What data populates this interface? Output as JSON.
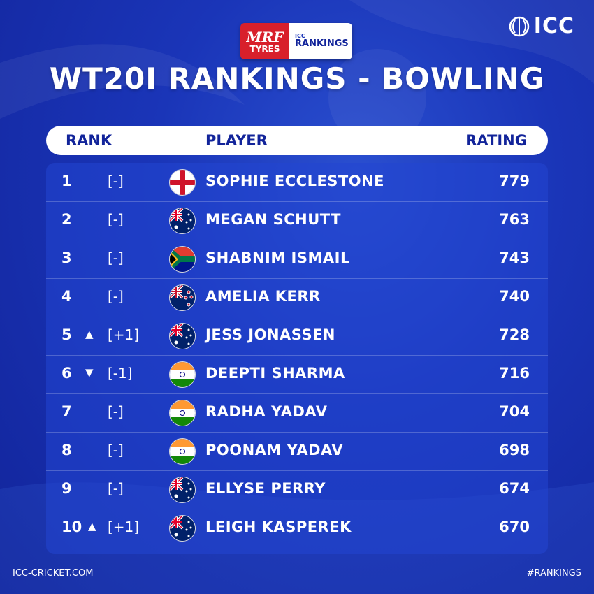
{
  "sponsor": {
    "brand_top": "MRF",
    "brand_bottom": "TYRES",
    "tag_top": "ICC",
    "tag_bottom": "RANKINGS"
  },
  "logo": {
    "text": "ICC"
  },
  "title": "WT20I RANKINGS - BOWLING",
  "header": {
    "rank": "RANK",
    "player": "PLAYER",
    "rating": "RATING"
  },
  "rows": [
    {
      "rank": "1",
      "arrow": "",
      "change": "[-]",
      "flag": "england",
      "name": "SOPHIE ECCLESTONE",
      "rating": "779"
    },
    {
      "rank": "2",
      "arrow": "",
      "change": "[-]",
      "flag": "australia",
      "name": "MEGAN SCHUTT",
      "rating": "763"
    },
    {
      "rank": "3",
      "arrow": "",
      "change": "[-]",
      "flag": "south-africa",
      "name": "SHABNIM ISMAIL",
      "rating": "743"
    },
    {
      "rank": "4",
      "arrow": "",
      "change": "[-]",
      "flag": "new-zealand",
      "name": "AMELIA KERR",
      "rating": "740"
    },
    {
      "rank": "5",
      "arrow": "▲",
      "change": "[+1]",
      "flag": "australia",
      "name": "JESS JONASSEN",
      "rating": "728"
    },
    {
      "rank": "6",
      "arrow": "▼",
      "change": "[-1]",
      "flag": "india",
      "name": "DEEPTI SHARMA",
      "rating": "716"
    },
    {
      "rank": "7",
      "arrow": "",
      "change": "[-]",
      "flag": "india",
      "name": "RADHA YADAV",
      "rating": "704"
    },
    {
      "rank": "8",
      "arrow": "",
      "change": "[-]",
      "flag": "india",
      "name": "POONAM YADAV",
      "rating": "698"
    },
    {
      "rank": "9",
      "arrow": "",
      "change": "[-]",
      "flag": "australia",
      "name": "ELLYSE PERRY",
      "rating": "674"
    },
    {
      "rank": "10",
      "arrow": "▲",
      "change": "[+1]",
      "flag": "australia",
      "name": "LEIGH KASPEREK",
      "rating": "670"
    }
  ],
  "footer": {
    "left": "ICC-CRICKET.COM",
    "right": "#RANKINGS"
  }
}
